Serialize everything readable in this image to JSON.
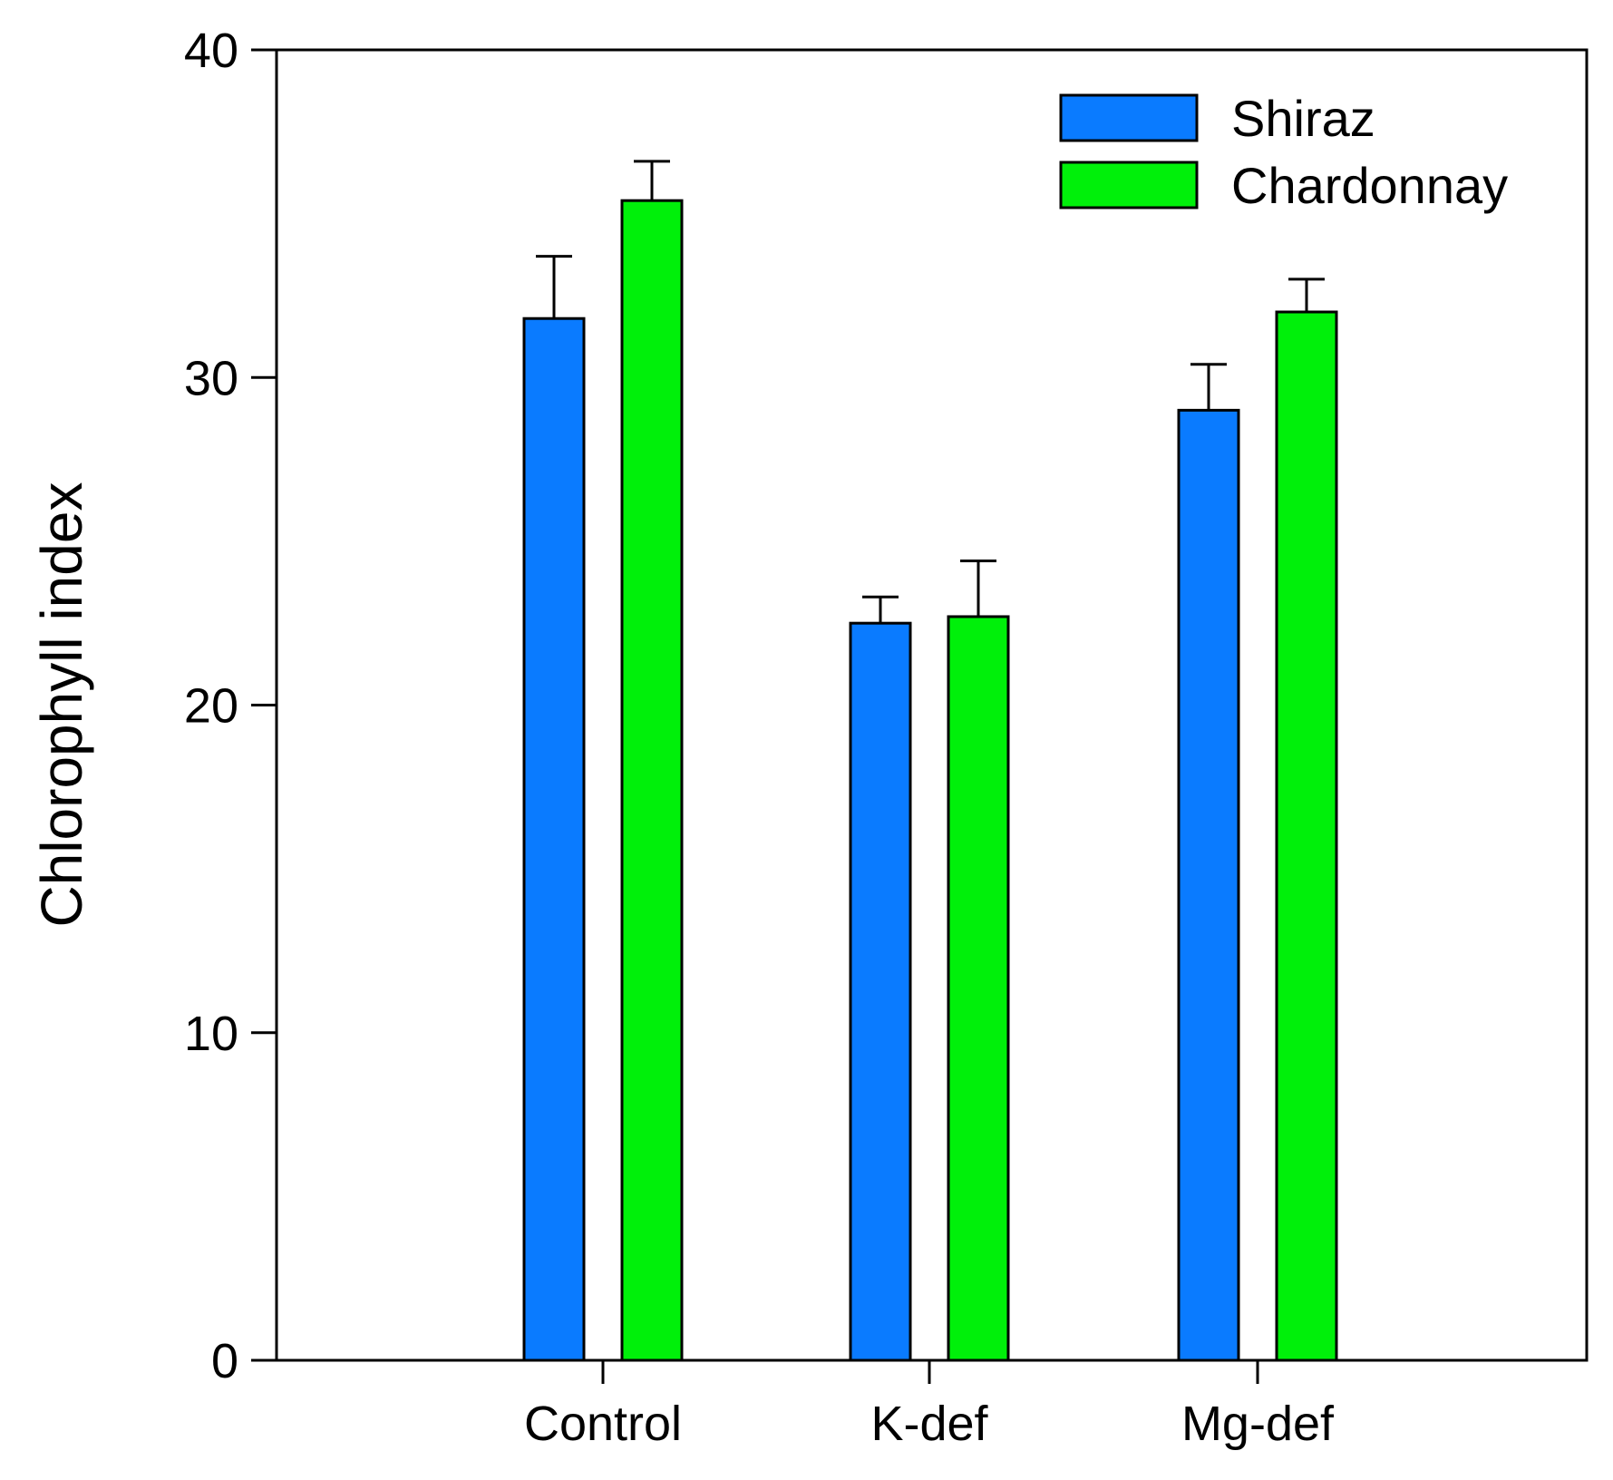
{
  "chart_data": {
    "type": "bar",
    "title": "",
    "xlabel": "",
    "ylabel": "Chlorophyll index",
    "ylim": [
      0,
      40
    ],
    "yticks": [
      0,
      10,
      20,
      30,
      40
    ],
    "categories": [
      "Control",
      "K-def",
      "Mg-def"
    ],
    "series": [
      {
        "name": "Shiraz",
        "color": "#0a7bff",
        "values": [
          31.8,
          22.5,
          29.0
        ],
        "errors": [
          1.9,
          0.8,
          1.4
        ]
      },
      {
        "name": "Chardonnay",
        "color": "#00f00a",
        "values": [
          35.4,
          22.7,
          32.0
        ],
        "errors": [
          1.2,
          1.7,
          1.0
        ]
      }
    ],
    "legend_position": "top-right",
    "grid": false
  }
}
